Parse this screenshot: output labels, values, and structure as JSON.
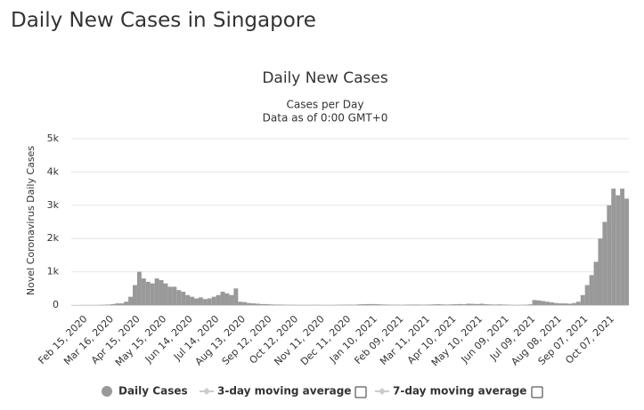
{
  "page_title": "Daily New Cases in Singapore",
  "chart_data": {
    "type": "bar",
    "title": "Daily New Cases",
    "subtitle": "Cases per Day",
    "subtitle2": "Data as of 0:00 GMT+0",
    "y_label": "Novel Coronavirus Daily Cases",
    "ylim": [
      0,
      5000
    ],
    "yticks": [
      0,
      {
        "value": 1000,
        "label": "1k"
      },
      {
        "value": 2000,
        "label": "2k"
      },
      {
        "value": 3000,
        "label": "3k"
      },
      {
        "value": 4000,
        "label": "4k"
      },
      {
        "value": 5000,
        "label": "5k"
      }
    ],
    "grid": true,
    "categories": [
      null,
      null,
      "Feb 15, 2020",
      null,
      null,
      null,
      null,
      null,
      "Mar 16, 2020",
      null,
      null,
      null,
      null,
      null,
      "Apr 15, 2020",
      null,
      null,
      null,
      null,
      null,
      "May 15, 2020",
      null,
      null,
      null,
      null,
      null,
      "Jun 14, 2020",
      null,
      null,
      null,
      null,
      null,
      "Jul 14, 2020",
      null,
      null,
      null,
      null,
      null,
      "Aug 13, 2020",
      null,
      null,
      null,
      null,
      null,
      "Sep 12, 2020",
      null,
      null,
      null,
      null,
      null,
      "Oct 12, 2020",
      null,
      null,
      null,
      null,
      null,
      "Nov 11, 2020",
      null,
      null,
      null,
      null,
      null,
      "Dec 11, 2020",
      null,
      null,
      null,
      null,
      null,
      "Jan 10, 2021",
      null,
      null,
      null,
      null,
      null,
      "Feb 09, 2021",
      null,
      null,
      null,
      null,
      null,
      "Mar 11, 2021",
      null,
      null,
      null,
      null,
      null,
      "Apr 10, 2021",
      null,
      null,
      null,
      null,
      null,
      "May 10, 2021",
      null,
      null,
      null,
      null,
      null,
      "Jun 09, 2021",
      null,
      null,
      null,
      null,
      null,
      "Jul 09, 2021",
      null,
      null,
      null,
      null,
      null,
      "Aug 08, 2021",
      null,
      null,
      null,
      null,
      null,
      "Sep 07, 2021",
      null,
      null,
      null,
      null,
      null,
      "Oct 07, 2021",
      null,
      null,
      null,
      null
    ],
    "series": [
      {
        "name": "Daily Cases",
        "color": "#999999",
        "values": [
          0,
          0,
          2,
          3,
          2,
          3,
          5,
          10,
          15,
          30,
          50,
          50,
          100,
          250,
          600,
          1000,
          800,
          700,
          650,
          800,
          750,
          650,
          550,
          550,
          450,
          400,
          300,
          250,
          200,
          230,
          180,
          200,
          250,
          300,
          400,
          350,
          300,
          500,
          100,
          90,
          60,
          50,
          40,
          30,
          30,
          20,
          15,
          15,
          10,
          8,
          8,
          6,
          5,
          5,
          6,
          8,
          6,
          5,
          4,
          5,
          8,
          10,
          10,
          12,
          10,
          20,
          25,
          30,
          30,
          25,
          20,
          15,
          12,
          10,
          10,
          8,
          12,
          15,
          15,
          12,
          12,
          15,
          20,
          25,
          20,
          15,
          20,
          25,
          30,
          25,
          40,
          35,
          30,
          40,
          25,
          20,
          15,
          20,
          15,
          10,
          8,
          5,
          8,
          10,
          20,
          150,
          140,
          120,
          100,
          80,
          60,
          50,
          50,
          40,
          60,
          100,
          300,
          600,
          900,
          1300,
          2000,
          2500,
          3000,
          3500,
          3300,
          3500,
          3200
        ]
      }
    ],
    "toggles": [
      "3-day moving average",
      "7-day moving average"
    ]
  }
}
